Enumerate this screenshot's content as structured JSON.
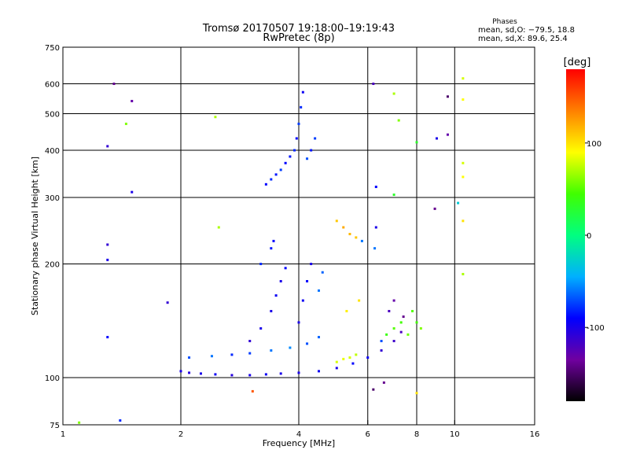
{
  "chart_data": {
    "type": "scatter",
    "title_line1": "Tromsø 20170507 19:18:00–19:19:43",
    "title_line2": "RwPretec (8p)",
    "xlabel": "Frequency [MHz]",
    "ylabel": "Stationary phase Virtual Height [km]",
    "x_scale": "log",
    "y_scale": "log",
    "xlim": [
      1,
      16
    ],
    "ylim": [
      75,
      750
    ],
    "x_ticks": [
      1,
      2,
      4,
      6,
      8,
      10,
      16
    ],
    "y_ticks": [
      75,
      100,
      200,
      300,
      400,
      500,
      600,
      750
    ],
    "grid": true,
    "stats": {
      "heading": "Phases",
      "line_o": "mean, sd,O: −79.5, 18.8",
      "line_x": "mean, sd,X:  89.6, 25.4"
    },
    "colorbar": {
      "label": "[deg]",
      "range": [
        -180,
        180
      ],
      "ticks": [
        100,
        0,
        -100
      ],
      "colors": [
        "#000000",
        "#7000a0",
        "#0000ff",
        "#00b0ff",
        "#00ff80",
        "#40ff00",
        "#ffff00",
        "#ff8000",
        "#ff0000"
      ]
    },
    "series": [
      {
        "points": [
          {
            "x": 2.0,
            "y": 104,
            "c": -100
          },
          {
            "x": 2.1,
            "y": 103,
            "c": -105
          },
          {
            "x": 2.25,
            "y": 102.5,
            "c": -100
          },
          {
            "x": 2.45,
            "y": 102,
            "c": -95
          },
          {
            "x": 2.7,
            "y": 101.5,
            "c": -105
          },
          {
            "x": 3.0,
            "y": 101.5,
            "c": -100
          },
          {
            "x": 3.3,
            "y": 102,
            "c": -95
          },
          {
            "x": 3.6,
            "y": 102.5,
            "c": -100
          },
          {
            "x": 4.0,
            "y": 103,
            "c": -100
          },
          {
            "x": 4.5,
            "y": 104,
            "c": -95
          },
          {
            "x": 5.0,
            "y": 106,
            "c": -100
          },
          {
            "x": 5.5,
            "y": 109,
            "c": -90
          },
          {
            "x": 6.0,
            "y": 113,
            "c": -95
          },
          {
            "x": 6.5,
            "y": 118,
            "c": -110
          },
          {
            "x": 7.0,
            "y": 125,
            "c": -115
          },
          {
            "x": 7.3,
            "y": 132,
            "c": -120
          },
          {
            "x": 2.1,
            "y": 113,
            "c": -70
          },
          {
            "x": 2.4,
            "y": 114,
            "c": -60
          },
          {
            "x": 2.7,
            "y": 115,
            "c": -80
          },
          {
            "x": 3.0,
            "y": 116,
            "c": -75
          },
          {
            "x": 3.4,
            "y": 118,
            "c": -60
          },
          {
            "x": 3.8,
            "y": 120,
            "c": -55
          },
          {
            "x": 4.2,
            "y": 123,
            "c": -70
          },
          {
            "x": 4.5,
            "y": 128,
            "c": -65
          },
          {
            "x": 3.0,
            "y": 125,
            "c": -110
          },
          {
            "x": 3.2,
            "y": 135,
            "c": -100
          },
          {
            "x": 3.4,
            "y": 150,
            "c": -100
          },
          {
            "x": 3.5,
            "y": 165,
            "c": -95
          },
          {
            "x": 3.6,
            "y": 180,
            "c": -100
          },
          {
            "x": 3.7,
            "y": 195,
            "c": -90
          },
          {
            "x": 3.2,
            "y": 200,
            "c": -80
          },
          {
            "x": 3.4,
            "y": 220,
            "c": -85
          },
          {
            "x": 3.45,
            "y": 230,
            "c": -90
          },
          {
            "x": 4.0,
            "y": 140,
            "c": -100
          },
          {
            "x": 4.1,
            "y": 160,
            "c": -95
          },
          {
            "x": 4.2,
            "y": 180,
            "c": -90
          },
          {
            "x": 4.3,
            "y": 200,
            "c": -100
          },
          {
            "x": 4.5,
            "y": 170,
            "c": -60
          },
          {
            "x": 4.6,
            "y": 190,
            "c": -65
          },
          {
            "x": 3.3,
            "y": 325,
            "c": -90
          },
          {
            "x": 3.4,
            "y": 335,
            "c": -80
          },
          {
            "x": 3.5,
            "y": 345,
            "c": -85
          },
          {
            "x": 3.6,
            "y": 355,
            "c": -75
          },
          {
            "x": 3.7,
            "y": 370,
            "c": -90
          },
          {
            "x": 3.8,
            "y": 385,
            "c": -85
          },
          {
            "x": 3.9,
            "y": 400,
            "c": -80
          },
          {
            "x": 3.95,
            "y": 430,
            "c": -90
          },
          {
            "x": 4.0,
            "y": 470,
            "c": -75
          },
          {
            "x": 4.05,
            "y": 520,
            "c": -80
          },
          {
            "x": 4.1,
            "y": 570,
            "c": -95
          },
          {
            "x": 4.2,
            "y": 380,
            "c": -70
          },
          {
            "x": 4.3,
            "y": 400,
            "c": -85
          },
          {
            "x": 4.4,
            "y": 430,
            "c": -75
          },
          {
            "x": 5.0,
            "y": 260,
            "c": 110
          },
          {
            "x": 5.2,
            "y": 250,
            "c": 120
          },
          {
            "x": 5.4,
            "y": 240,
            "c": 115
          },
          {
            "x": 5.6,
            "y": 235,
            "c": 110
          },
          {
            "x": 5.8,
            "y": 230,
            "c": -60
          },
          {
            "x": 5.0,
            "y": 110,
            "c": 80
          },
          {
            "x": 5.2,
            "y": 112,
            "c": 85
          },
          {
            "x": 5.4,
            "y": 113,
            "c": 80
          },
          {
            "x": 5.6,
            "y": 115,
            "c": 75
          },
          {
            "x": 5.7,
            "y": 160,
            "c": 100
          },
          {
            "x": 5.3,
            "y": 150,
            "c": 95
          },
          {
            "x": 6.5,
            "y": 125,
            "c": -70
          },
          {
            "x": 6.7,
            "y": 130,
            "c": 40
          },
          {
            "x": 7.0,
            "y": 135,
            "c": 50
          },
          {
            "x": 7.3,
            "y": 140,
            "c": 45
          },
          {
            "x": 7.6,
            "y": 130,
            "c": 55
          },
          {
            "x": 7.8,
            "y": 150,
            "c": 50
          },
          {
            "x": 8.0,
            "y": 140,
            "c": 45
          },
          {
            "x": 8.2,
            "y": 135,
            "c": 60
          },
          {
            "x": 7.4,
            "y": 145,
            "c": -140
          },
          {
            "x": 7.0,
            "y": 160,
            "c": -130
          },
          {
            "x": 6.8,
            "y": 150,
            "c": -120
          },
          {
            "x": 6.2,
            "y": 600,
            "c": -120
          },
          {
            "x": 6.3,
            "y": 320,
            "c": -90
          },
          {
            "x": 6.3,
            "y": 250,
            "c": -100
          },
          {
            "x": 6.25,
            "y": 220,
            "c": -60
          },
          {
            "x": 1.35,
            "y": 600,
            "c": -140
          },
          {
            "x": 1.5,
            "y": 540,
            "c": -130
          },
          {
            "x": 1.45,
            "y": 470,
            "c": 60
          },
          {
            "x": 1.3,
            "y": 410,
            "c": -110
          },
          {
            "x": 1.5,
            "y": 310,
            "c": -100
          },
          {
            "x": 1.3,
            "y": 225,
            "c": -110
          },
          {
            "x": 1.3,
            "y": 205,
            "c": -100
          },
          {
            "x": 1.3,
            "y": 128,
            "c": -90
          },
          {
            "x": 1.4,
            "y": 77,
            "c": -80
          },
          {
            "x": 1.1,
            "y": 76,
            "c": 60
          },
          {
            "x": 1.85,
            "y": 158,
            "c": -110
          },
          {
            "x": 2.45,
            "y": 490,
            "c": 70
          },
          {
            "x": 2.5,
            "y": 250,
            "c": 70
          },
          {
            "x": 3.05,
            "y": 92,
            "c": 150
          },
          {
            "x": 6.2,
            "y": 93,
            "c": -150
          },
          {
            "x": 6.6,
            "y": 97,
            "c": -140
          },
          {
            "x": 8.0,
            "y": 91,
            "c": 100
          },
          {
            "x": 7.0,
            "y": 565,
            "c": 70
          },
          {
            "x": 7.2,
            "y": 480,
            "c": 60
          },
          {
            "x": 7.0,
            "y": 305,
            "c": 30
          },
          {
            "x": 9.6,
            "y": 555,
            "c": -150
          },
          {
            "x": 9.6,
            "y": 440,
            "c": -130
          },
          {
            "x": 8.9,
            "y": 280,
            "c": -140
          },
          {
            "x": 9.0,
            "y": 430,
            "c": -100
          },
          {
            "x": 10.5,
            "y": 620,
            "c": 80
          },
          {
            "x": 10.5,
            "y": 545,
            "c": 90
          },
          {
            "x": 10.5,
            "y": 370,
            "c": 80
          },
          {
            "x": 10.5,
            "y": 340,
            "c": 90
          },
          {
            "x": 10.5,
            "y": 260,
            "c": 100
          },
          {
            "x": 10.5,
            "y": 188,
            "c": 70
          },
          {
            "x": 8.0,
            "y": 420,
            "c": 30
          },
          {
            "x": 10.2,
            "y": 290,
            "c": -30
          }
        ]
      }
    ]
  }
}
